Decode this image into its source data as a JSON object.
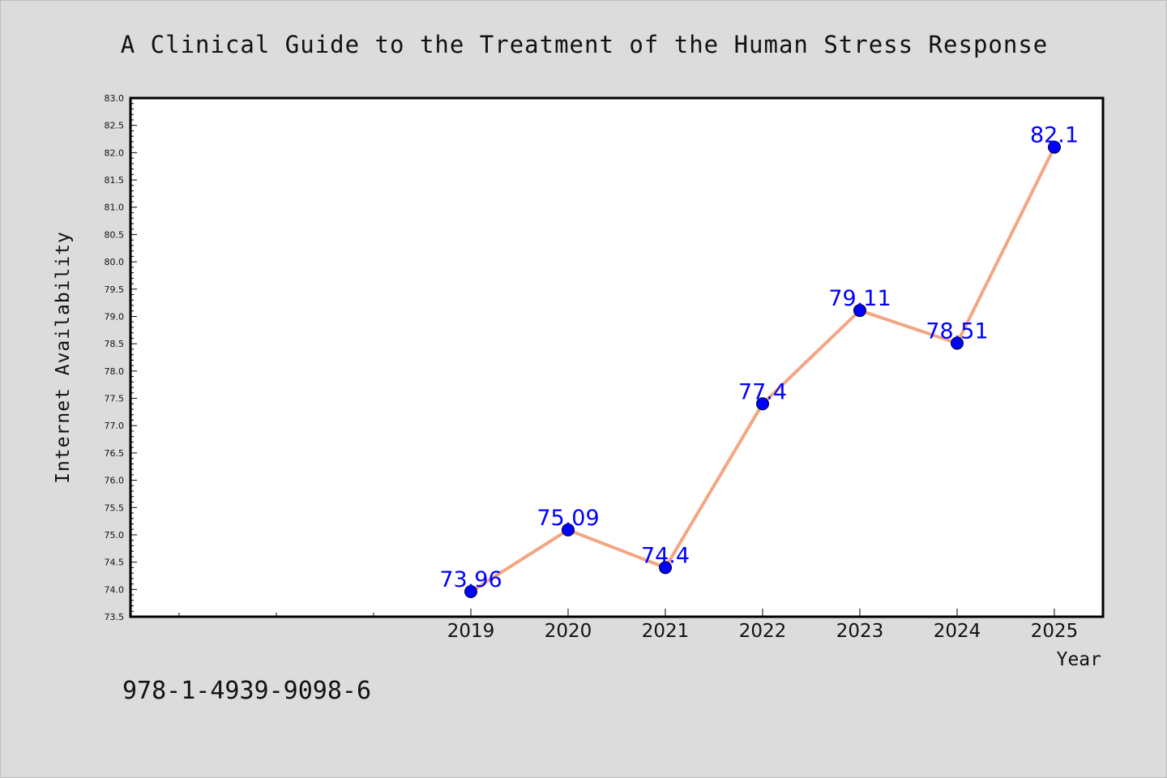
{
  "chart_data": {
    "type": "line",
    "title": "A Clinical Guide to the Treatment of the Human Stress Response",
    "xlabel": "Year",
    "ylabel": "Internet Availability",
    "x": [
      2019,
      2020,
      2021,
      2022,
      2023,
      2024,
      2025
    ],
    "x_tick_labels": [
      "2019",
      "2020",
      "2021",
      "2022",
      "2023",
      "2024",
      "2025"
    ],
    "series": [
      {
        "values": [
          73.96,
          75.09,
          74.4,
          77.4,
          79.11,
          78.51,
          82.1
        ],
        "data_labels": [
          "73.96",
          "75.09",
          "74.4",
          "77.4",
          "79.11",
          "78.51",
          "82.1"
        ],
        "line_color": "#f4a582",
        "marker_color": "#0000ff"
      }
    ],
    "xlim": [
      2015.5,
      2025.5
    ],
    "ylim": [
      73.5,
      83.0
    ],
    "y_tick_step": 0.5,
    "grid": false,
    "legend": "none",
    "data_label_color": "#0000ff"
  },
  "footer": {
    "code": "978-1-4939-9098-6"
  }
}
